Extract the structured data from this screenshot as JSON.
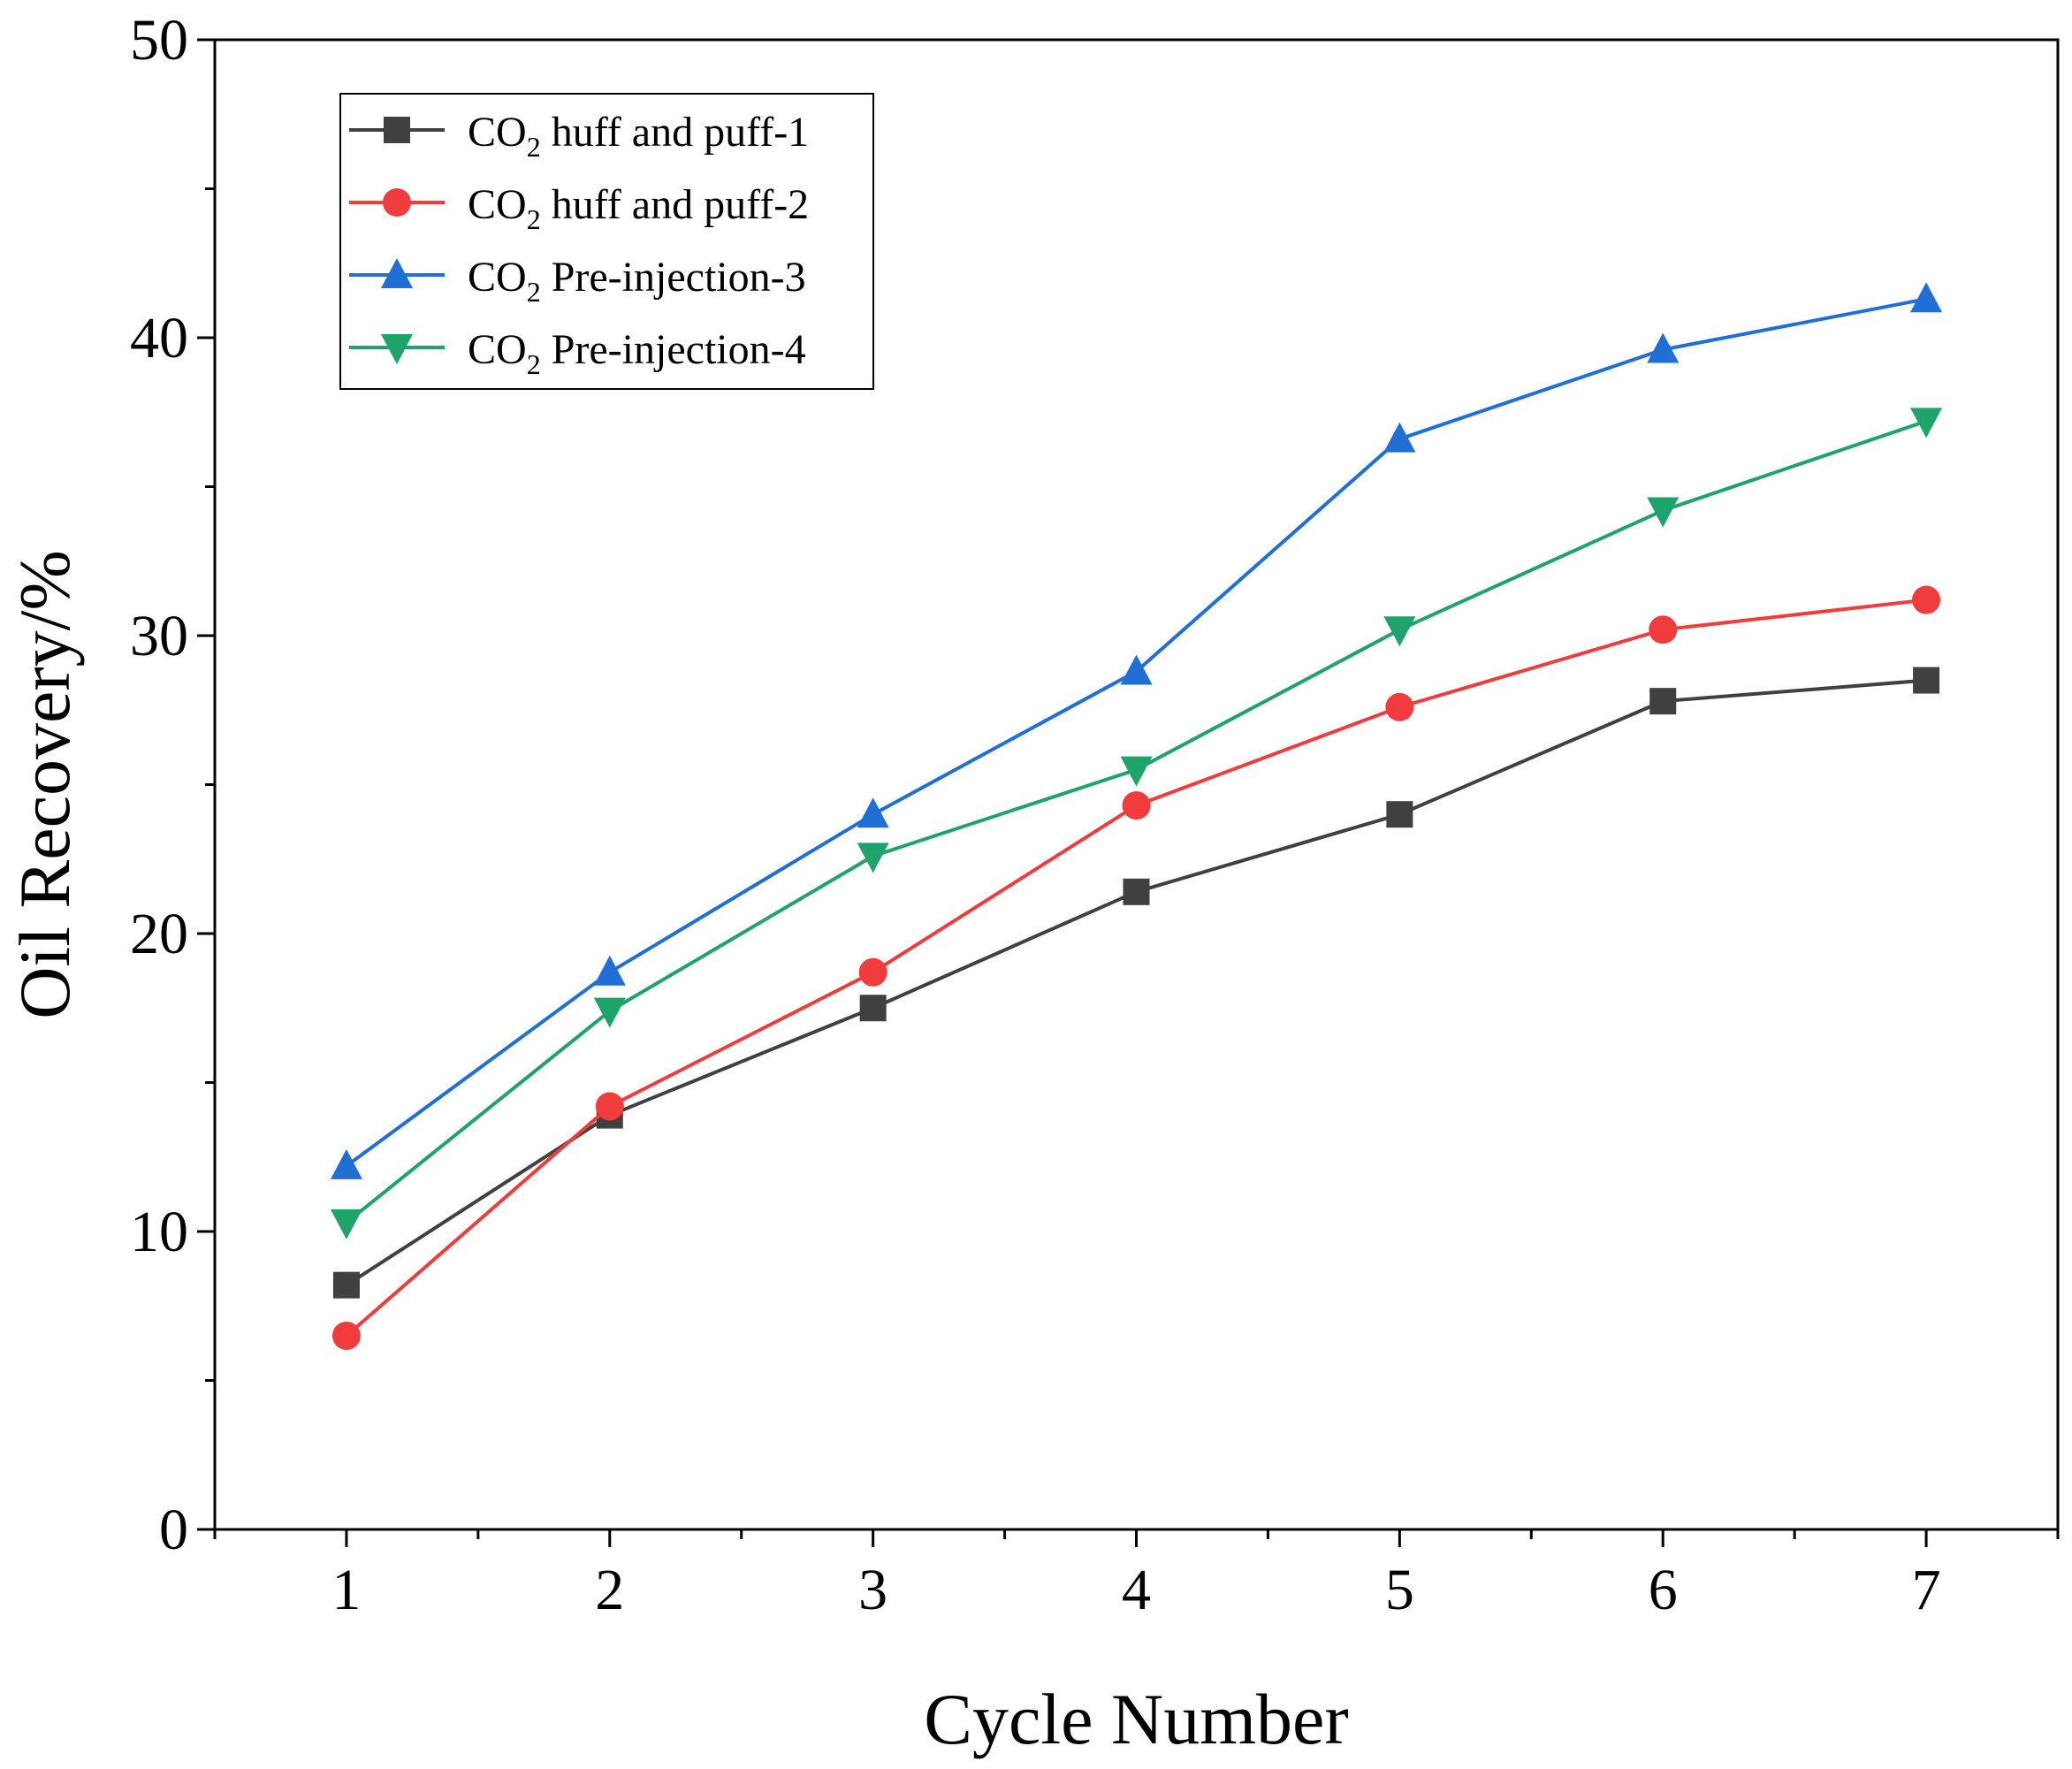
{
  "chart_data": {
    "type": "line",
    "title": "",
    "xlabel": "Cycle Number",
    "ylabel": "Oil Recovery/%",
    "xlim": [
      0.5,
      7.5
    ],
    "ylim": [
      0,
      50
    ],
    "x_ticks": [
      1,
      2,
      3,
      4,
      5,
      6,
      7
    ],
    "x_tick_labels": [
      "1",
      "2",
      "3",
      "4",
      "5",
      "6",
      "7"
    ],
    "y_ticks": [
      0,
      10,
      20,
      30,
      40,
      50
    ],
    "y_tick_labels": [
      "0",
      "10",
      "20",
      "30",
      "40",
      "50"
    ],
    "grid": false,
    "legend_position": "top-left",
    "x": [
      1,
      2,
      3,
      4,
      5,
      6,
      7
    ],
    "series": [
      {
        "name": "CO2 huff and puff-1",
        "label_prefix": "CO",
        "label_subscript": "2",
        "label_suffix": " huff and puff-1",
        "color": "#404040",
        "marker": "square",
        "values": [
          8.2,
          13.9,
          17.5,
          21.4,
          24.0,
          27.8,
          28.5
        ]
      },
      {
        "name": "CO2 huff and puff-2",
        "label_prefix": "CO",
        "label_subscript": "2",
        "label_suffix": " huff and puff-2",
        "color": "#f03c3c",
        "marker": "circle",
        "values": [
          6.5,
          14.2,
          18.7,
          24.3,
          27.6,
          30.2,
          31.2
        ]
      },
      {
        "name": "CO2 Pre-injection-3",
        "label_prefix": "CO",
        "label_subscript": "2",
        "label_suffix": " Pre-injection-3",
        "color": "#1f6fd6",
        "marker": "triangle-up",
        "values": [
          12.2,
          18.7,
          24.0,
          28.8,
          36.6,
          39.6,
          41.3
        ]
      },
      {
        "name": "CO2 Pre-injection-4",
        "label_prefix": "CO",
        "label_subscript": "2",
        "label_suffix": " Pre-injection-4",
        "color": "#1ea36a",
        "marker": "triangle-down",
        "values": [
          10.3,
          17.4,
          22.6,
          25.5,
          30.2,
          34.2,
          37.2
        ]
      }
    ]
  }
}
